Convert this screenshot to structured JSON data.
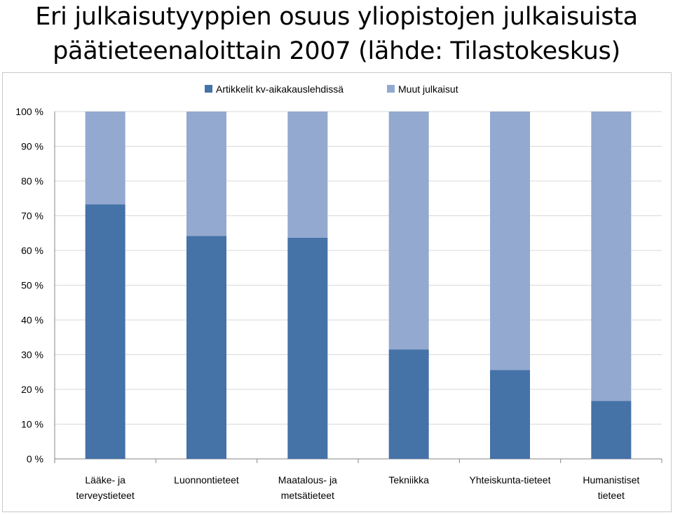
{
  "title_line1": "Eri julkaisutyyppien osuus yliopistojen julkaisuista",
  "title_line2": "päätieteenaloittain 2007 (lähde: Tilastokeskus)",
  "colors": {
    "dark": "#4572a7",
    "light": "#93a9cf",
    "grid": "#d9d9d9",
    "axis": "#868686"
  },
  "chart_data": {
    "type": "bar",
    "stacked": true,
    "title": "Eri julkaisutyyppien osuus yliopistojen julkaisuista päätieteenaloittain 2007 (lähde: Tilastokeskus)",
    "categories": [
      [
        "Lääke- ja",
        "terveystieteet"
      ],
      [
        "Luonnontieteet"
      ],
      [
        "Maatalous- ja",
        "metsätieteet"
      ],
      [
        "Tekniikka"
      ],
      [
        "Yhteiskunta-tieteet"
      ],
      [
        "Humanistiset",
        "tieteet"
      ]
    ],
    "series": [
      {
        "name": "Artikkelit kv-aikakauslehdissä",
        "values": [
          73.3,
          64.2,
          63.7,
          31.5,
          25.6,
          16.7
        ]
      },
      {
        "name": "Muut julkaisut",
        "values": [
          26.7,
          35.8,
          36.3,
          68.5,
          74.4,
          83.3
        ]
      }
    ],
    "yticks": [
      "0 %",
      "10 %",
      "20 %",
      "30 %",
      "40 %",
      "50 %",
      "60 %",
      "70 %",
      "80 %",
      "90 %",
      "100 %"
    ],
    "ylim": [
      0,
      100
    ],
    "grid": true,
    "legend": "top"
  }
}
